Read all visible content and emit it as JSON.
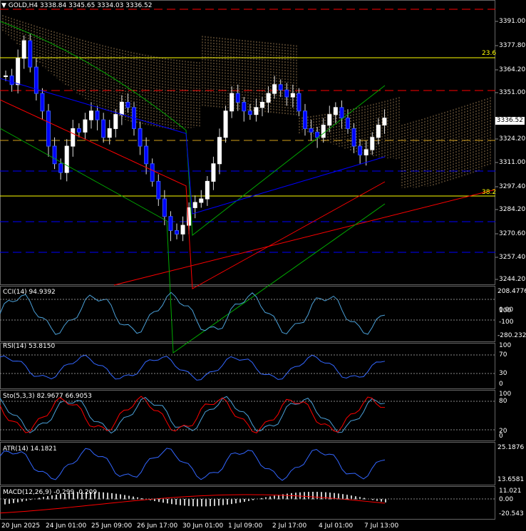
{
  "header": {
    "title": "GOLD,H4",
    "ohlc": "3338.84 3345.65 3334.03 3336.52"
  },
  "current_price": "3336.52",
  "price_axis": [
    "3391.00",
    "3377.80",
    "3364.20",
    "3351.00",
    "3324.20",
    "3311.00",
    "3297.40",
    "3284.20",
    "3270.60",
    "3257.40",
    "3244.20"
  ],
  "fib_labels": {
    "upper": "23.6",
    "lower": "38.2"
  },
  "indicators": {
    "cci": {
      "title": "CCI(14) 94.9392",
      "axis": [
        "208.4776",
        "100",
        "0.00",
        "-100",
        "-280.2323"
      ]
    },
    "rsi": {
      "title": "RSI(14) 53.8150",
      "axis": [
        "100",
        "70",
        "30",
        "0"
      ]
    },
    "sto": {
      "title": "Sto(5,3,3) 82.9677 66.9053",
      "axis": [
        "100",
        "80",
        "20",
        "0"
      ]
    },
    "atr": {
      "title": "ATR(14) 14.1821",
      "axis": [
        "25.1876",
        "13.6581"
      ]
    },
    "macd": {
      "title": "MACD(12,26,9) -0.299 -0.209",
      "axis": [
        "11.021",
        "0.00",
        "-20.543"
      ]
    }
  },
  "time_axis": [
    "20 Jun 2025",
    "24 Jun 01:00",
    "25 Jun 09:00",
    "26 Jun 17:00",
    "30 Jun 01:00",
    "1 Jul 09:00",
    "2 Jul 17:00",
    "4 Jul 01:00",
    "7 Jul 13:00"
  ],
  "colors": {
    "bull": "#ffffff",
    "bear": "#0000ff",
    "boll": "#00aa00",
    "ichimoku": "#ffcc88",
    "red": "#ff0000",
    "blue": "#0000ff",
    "fib": "#ffff00",
    "osc": "#4aa0d8"
  }
}
